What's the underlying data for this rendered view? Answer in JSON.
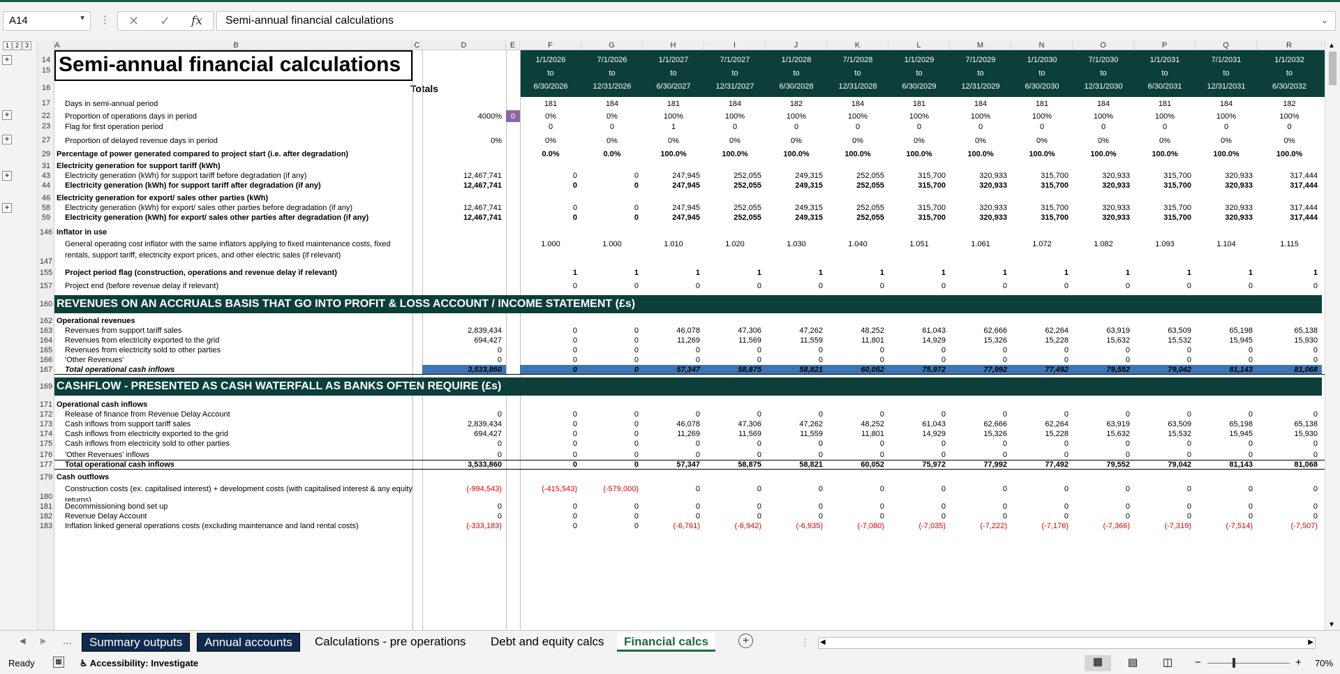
{
  "formula_bar": {
    "name_box": "A14",
    "formula": "Semi-annual financial calculations",
    "cancel_glyph": "✕",
    "enter_glyph": "✓",
    "fx_glyph": "fx"
  },
  "outline_levels": [
    "1",
    "2",
    "3"
  ],
  "column_letters": [
    "A",
    "B",
    "C",
    "D",
    "E",
    "F",
    "G",
    "H",
    "I",
    "J",
    "K",
    "L",
    "M",
    "N",
    "O",
    "P",
    "Q",
    "R"
  ],
  "sheet": {
    "title": "Semi-annual financial calculations",
    "totals_label": "Totals",
    "periods": [
      {
        "from": "1/1/2026",
        "to": "6/30/2026"
      },
      {
        "from": "7/1/2026",
        "to": "12/31/2026"
      },
      {
        "from": "1/1/2027",
        "to": "6/30/2027"
      },
      {
        "from": "7/1/2027",
        "to": "12/31/2027"
      },
      {
        "from": "1/1/2028",
        "to": "6/30/2028"
      },
      {
        "from": "7/1/2028",
        "to": "12/31/2028"
      },
      {
        "from": "1/1/2029",
        "to": "6/30/2029"
      },
      {
        "from": "7/1/2029",
        "to": "12/31/2029"
      },
      {
        "from": "1/1/2030",
        "to": "6/30/2030"
      },
      {
        "from": "7/1/2030",
        "to": "12/31/2030"
      },
      {
        "from": "1/1/2031",
        "to": "6/30/2031"
      },
      {
        "from": "7/1/2031",
        "to": "12/31/2031"
      },
      {
        "from": "1/1/2032",
        "to": "6/30/2032"
      }
    ],
    "to_word": "to",
    "header_row_numbers": [
      "14",
      "15",
      "16"
    ],
    "rows": [
      {
        "n": "17",
        "label": "Days in semi-annual period",
        "indent": true,
        "vals": [
          "181",
          "184",
          "181",
          "184",
          "182",
          "184",
          "181",
          "184",
          "181",
          "184",
          "181",
          "184",
          "182"
        ],
        "align": "center"
      },
      {
        "n": "22",
        "label": "Proportion of operations days in period",
        "indent": true,
        "total": "4000%",
        "e": "0",
        "vals": [
          "0%",
          "0%",
          "100%",
          "100%",
          "100%",
          "100%",
          "100%",
          "100%",
          "100%",
          "100%",
          "100%",
          "100%",
          "100%"
        ],
        "align": "center"
      },
      {
        "n": "23",
        "label": "Flag for first operation period",
        "indent": true,
        "vals": [
          "0",
          "0",
          "1",
          "0",
          "0",
          "0",
          "0",
          "0",
          "0",
          "0",
          "0",
          "0",
          "0"
        ],
        "align": "center"
      },
      {
        "n": "27",
        "label": "Proportion of delayed revenue days in period",
        "indent": true,
        "total": "0%",
        "vals": [
          "0%",
          "0%",
          "0%",
          "0%",
          "0%",
          "0%",
          "0%",
          "0%",
          "0%",
          "0%",
          "0%",
          "0%",
          "0%"
        ],
        "align": "center"
      },
      {
        "n": "29",
        "label": "Percentage of power generated compared to project start (i.e. after degradation)",
        "bold": true,
        "vals": [
          "0.0%",
          "0.0%",
          "100.0%",
          "100.0%",
          "100.0%",
          "100.0%",
          "100.0%",
          "100.0%",
          "100.0%",
          "100.0%",
          "100.0%",
          "100.0%",
          "100.0%"
        ],
        "align": "center"
      },
      {
        "n": "31",
        "label": "Electricity generation for support tariff (kWh)",
        "bold": true
      },
      {
        "n": "43",
        "label": "Electricity generation (kWh) for support tariff before degradation (if any)",
        "indent": true,
        "total": "12,467,741",
        "vals": [
          "0",
          "0",
          "247,945",
          "252,055",
          "249,315",
          "252,055",
          "315,700",
          "320,933",
          "315,700",
          "320,933",
          "315,700",
          "320,933",
          "317,444"
        ]
      },
      {
        "n": "44",
        "label": "Electricity generation (kWh) for support tariff after degradation (if any)",
        "indent": true,
        "bold": true,
        "total": "12,467,741",
        "vals": [
          "0",
          "0",
          "247,945",
          "252,055",
          "249,315",
          "252,055",
          "315,700",
          "320,933",
          "315,700",
          "320,933",
          "315,700",
          "320,933",
          "317,444"
        ]
      },
      {
        "n": "46",
        "label": "Electricity generation for export/ sales other parties (kWh)",
        "bold": true
      },
      {
        "n": "58",
        "label": "Electricity generation (kWh) for export/ sales other parties before degradation (if any)",
        "indent": true,
        "total": "12,467,741",
        "vals": [
          "0",
          "0",
          "247,945",
          "252,055",
          "249,315",
          "252,055",
          "315,700",
          "320,933",
          "315,700",
          "320,933",
          "315,700",
          "320,933",
          "317,444"
        ]
      },
      {
        "n": "59",
        "label": "Electricity generation (kWh) for export/ sales other parties after degradation (if any)",
        "indent": true,
        "bold": true,
        "total": "12,467,741",
        "vals": [
          "0",
          "0",
          "247,945",
          "252,055",
          "249,315",
          "252,055",
          "315,700",
          "320,933",
          "315,700",
          "320,933",
          "315,700",
          "320,933",
          "317,444"
        ]
      },
      {
        "n": "146",
        "label": "Inflator in use",
        "bold": true
      },
      {
        "n": "147",
        "label": "General operating cost inflator with the same inflators applying to fixed maintenance costs, fixed rentals, support tariff, electricity export prices, and other electric sales (if relevant)",
        "indent": true,
        "vals": [
          "1.000",
          "1.000",
          "1.010",
          "1.020",
          "1.030",
          "1.040",
          "1.051",
          "1.061",
          "1.072",
          "1.082",
          "1.093",
          "1.104",
          "1.115"
        ],
        "align": "center"
      },
      {
        "n": "155",
        "label": "Project period flag (construction, operations and revenue delay if relevant)",
        "indent": true,
        "bold": true,
        "vals": [
          "1",
          "1",
          "1",
          "1",
          "1",
          "1",
          "1",
          "1",
          "1",
          "1",
          "1",
          "1",
          "1"
        ]
      },
      {
        "n": "157",
        "label": "Project end (before revenue delay if relevant)",
        "indent": true,
        "vals": [
          "0",
          "0",
          "0",
          "0",
          "0",
          "0",
          "0",
          "0",
          "0",
          "0",
          "0",
          "0",
          "0"
        ]
      },
      {
        "n": "160",
        "section": "REVENUES ON AN ACCRUALS BASIS THAT GO INTO PROFIT & LOSS ACCOUNT / INCOME STATEMENT (£s)"
      },
      {
        "n": "162",
        "label": "Operational revenues",
        "bold": true
      },
      {
        "n": "163",
        "label": "Revenues from support tariff sales",
        "indent": true,
        "total": "2,839,434",
        "vals": [
          "0",
          "0",
          "46,078",
          "47,306",
          "47,262",
          "48,252",
          "61,043",
          "62,666",
          "62,264",
          "63,919",
          "63,509",
          "65,198",
          "65,138"
        ]
      },
      {
        "n": "164",
        "label": "Revenues from electricity exported to the grid",
        "indent": true,
        "total": "694,427",
        "vals": [
          "0",
          "0",
          "11,269",
          "11,569",
          "11,559",
          "11,801",
          "14,929",
          "15,326",
          "15,228",
          "15,632",
          "15,532",
          "15,945",
          "15,930"
        ]
      },
      {
        "n": "165",
        "label": "Revenues from electricity sold to other parties",
        "indent": true,
        "total": "0",
        "vals": [
          "0",
          "0",
          "0",
          "0",
          "0",
          "0",
          "0",
          "0",
          "0",
          "0",
          "0",
          "0",
          "0"
        ]
      },
      {
        "n": "166",
        "label": "'Other Revenues'",
        "indent": true,
        "total": "0",
        "vals": [
          "0",
          "0",
          "0",
          "0",
          "0",
          "0",
          "0",
          "0",
          "0",
          "0",
          "0",
          "0",
          "0"
        ]
      },
      {
        "n": "167",
        "label": "Total operational cash inflows",
        "indent": true,
        "bold": true,
        "italic": true,
        "blue": true,
        "total": "3,533,860",
        "vals": [
          "0",
          "0",
          "57,347",
          "58,875",
          "58,821",
          "60,052",
          "75,972",
          "77,992",
          "77,492",
          "79,552",
          "79,042",
          "81,143",
          "81,068"
        ]
      },
      {
        "n": "169",
        "section": "CASHFLOW - PRESENTED AS CASH WATERFALL AS BANKS OFTEN REQUIRE (£s)"
      },
      {
        "n": "171",
        "label": "Operational cash inflows",
        "bold": true
      },
      {
        "n": "172",
        "label": "Release of finance from Revenue Delay Account",
        "indent": true,
        "total": "0",
        "vals": [
          "0",
          "0",
          "0",
          "0",
          "0",
          "0",
          "0",
          "0",
          "0",
          "0",
          "0",
          "0",
          "0"
        ]
      },
      {
        "n": "173",
        "label": "Cash inflows from support tariff sales",
        "indent": true,
        "total": "2,839,434",
        "vals": [
          "0",
          "0",
          "46,078",
          "47,306",
          "47,262",
          "48,252",
          "61,043",
          "62,666",
          "62,264",
          "63,919",
          "63,509",
          "65,198",
          "65,138"
        ]
      },
      {
        "n": "174",
        "label": "Cash inflows from electricity exported to the grid",
        "indent": true,
        "total": "694,427",
        "vals": [
          "0",
          "0",
          "11,269",
          "11,569",
          "11,559",
          "11,801",
          "14,929",
          "15,326",
          "15,228",
          "15,632",
          "15,532",
          "15,945",
          "15,930"
        ]
      },
      {
        "n": "175",
        "label": "Cash inflows from electricity sold to other parties",
        "indent": true,
        "total": "0",
        "vals": [
          "0",
          "0",
          "0",
          "0",
          "0",
          "0",
          "0",
          "0",
          "0",
          "0",
          "0",
          "0",
          "0"
        ]
      },
      {
        "n": "176",
        "label": "'Other Revenues' inflows",
        "indent": true,
        "total": "0",
        "vals": [
          "0",
          "0",
          "0",
          "0",
          "0",
          "0",
          "0",
          "0",
          "0",
          "0",
          "0",
          "0",
          "0"
        ]
      },
      {
        "n": "177",
        "label": "Total operational cash inflows",
        "indent": true,
        "bold": true,
        "total": "3,533,860",
        "vals": [
          "0",
          "0",
          "57,347",
          "58,875",
          "58,821",
          "60,052",
          "75,972",
          "77,992",
          "77,492",
          "79,552",
          "79,042",
          "81,143",
          "81,068"
        ]
      },
      {
        "n": "179",
        "label": "Cash outflows",
        "bold": true
      },
      {
        "n": "180",
        "label": "Construction costs (ex. capitalised interest) + development costs (with capitalised interest & any equity returns)",
        "indent": true,
        "total": "(-994,543)",
        "red_total": true,
        "vals": [
          "(-415,543)",
          "(-579,000)",
          "0",
          "0",
          "0",
          "0",
          "0",
          "0",
          "0",
          "0",
          "0",
          "0",
          "0"
        ],
        "red_first": 2
      },
      {
        "n": "181",
        "label": "Decommissioning bond set up",
        "indent": true,
        "total": "0",
        "vals": [
          "0",
          "0",
          "0",
          "0",
          "0",
          "0",
          "0",
          "0",
          "0",
          "0",
          "0",
          "0",
          "0"
        ]
      },
      {
        "n": "182",
        "label": "Revenue Delay Account",
        "indent": true,
        "total": "0",
        "vals": [
          "0",
          "0",
          "0",
          "0",
          "0",
          "0",
          "0",
          "0",
          "0",
          "0",
          "0",
          "0",
          "0"
        ]
      },
      {
        "n": "183",
        "label": "Inflation linked general operations costs (excluding maintenance and land rental costs)",
        "indent": true,
        "total": "(-333,183)",
        "red_total": true,
        "vals": [
          "0",
          "0",
          "(-6,761)",
          "(-6,942)",
          "(-6,935)",
          "(-7,080)",
          "(-7,035)",
          "(-7,222)",
          "(-7,176)",
          "(-7,366)",
          "(-7,319)",
          "(-7,514)",
          "(-7,507)"
        ],
        "red_from": 2
      }
    ]
  },
  "tabs": {
    "nav_prev": "◀",
    "nav_next": "▶",
    "more": "...",
    "items": [
      "Summary outputs",
      "Annual accounts",
      "Calculations - pre operations",
      "Debt and equity calcs",
      "Financial calcs"
    ],
    "active": "Financial calcs",
    "add_glyph": "+"
  },
  "status": {
    "ready": "Ready",
    "accessibility": "Accessibility: Investigate",
    "zoom": "70%",
    "zoom_minus": "−",
    "zoom_plus": "+"
  },
  "colors": {
    "header_band": "#0c3f3a",
    "total_blue": "#3d75b3",
    "negative": "#e00000",
    "excel_green": "#1e6b3a",
    "dark_tab": "#0f2a4d"
  }
}
